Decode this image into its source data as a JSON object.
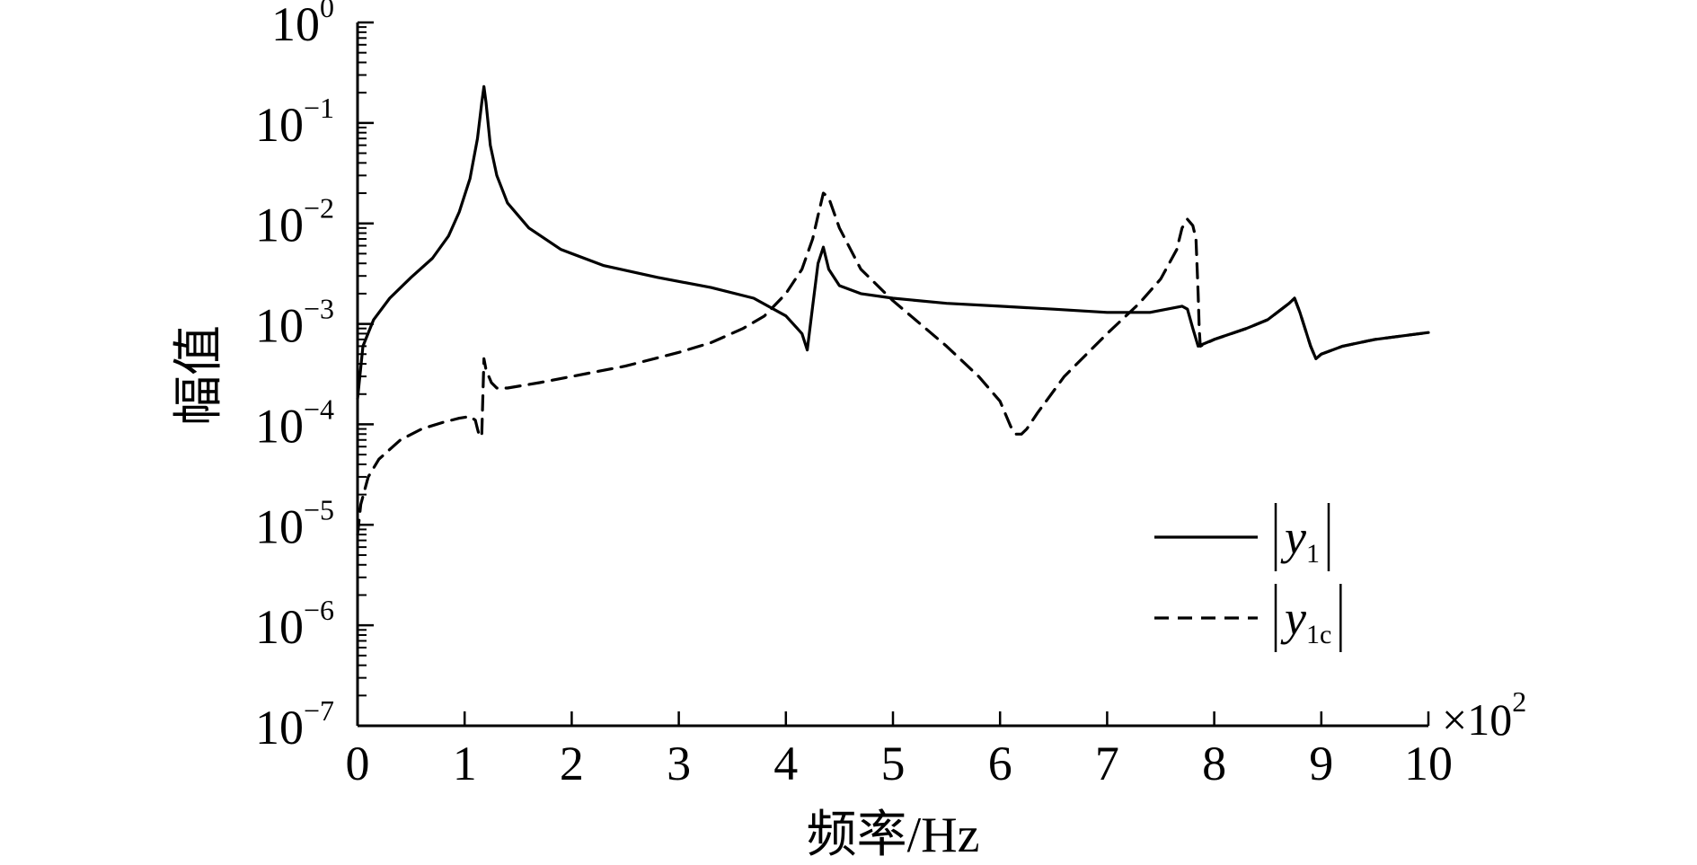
{
  "chart_data": {
    "type": "line",
    "xlabel": "频率/Hz",
    "ylabel": "幅值",
    "x_scale_label": "×10",
    "x_scale_exp": "2",
    "xlim": [
      0,
      10
    ],
    "ylim": [
      1e-07,
      1
    ],
    "yscale": "log",
    "x_ticks": [
      "0",
      "1",
      "2",
      "3",
      "4",
      "5",
      "6",
      "7",
      "8",
      "9",
      "10"
    ],
    "y_ticks": [
      {
        "base": "10",
        "exp": "0"
      },
      {
        "base": "10",
        "exp": "−1"
      },
      {
        "base": "10",
        "exp": "−2"
      },
      {
        "base": "10",
        "exp": "−3"
      },
      {
        "base": "10",
        "exp": "−4"
      },
      {
        "base": "10",
        "exp": "−5"
      },
      {
        "base": "10",
        "exp": "−6"
      },
      {
        "base": "10",
        "exp": "−7"
      }
    ],
    "grid": false,
    "legend_position": "lower-right",
    "series": [
      {
        "name": "|y1|",
        "label_main": "y",
        "label_sub": "1",
        "style": "solid",
        "color": "#000000",
        "x": [
          0,
          0.05,
          0.15,
          0.3,
          0.5,
          0.7,
          0.85,
          0.95,
          1.05,
          1.12,
          1.16,
          1.18,
          1.2,
          1.24,
          1.3,
          1.4,
          1.6,
          1.9,
          2.3,
          2.8,
          3.3,
          3.7,
          4.0,
          4.15,
          4.2,
          4.25,
          4.3,
          4.35,
          4.4,
          4.5,
          4.7,
          5.0,
          5.5,
          6.0,
          6.5,
          7.0,
          7.4,
          7.7,
          7.75,
          7.8,
          7.85,
          8.0,
          8.3,
          8.5,
          8.7,
          8.75,
          8.8,
          8.9,
          8.95,
          9.0,
          9.2,
          9.5,
          10.0
        ],
        "y": [
          0.00018,
          0.0006,
          0.0011,
          0.0018,
          0.0029,
          0.0045,
          0.0075,
          0.013,
          0.028,
          0.07,
          0.16,
          0.23,
          0.16,
          0.06,
          0.03,
          0.016,
          0.009,
          0.0055,
          0.0038,
          0.0029,
          0.0023,
          0.0018,
          0.0012,
          0.0008,
          0.00055,
          0.0015,
          0.004,
          0.0058,
          0.0035,
          0.0024,
          0.002,
          0.0018,
          0.0016,
          0.0015,
          0.0014,
          0.0013,
          0.0013,
          0.0015,
          0.0014,
          0.0009,
          0.0006,
          0.0007,
          0.0009,
          0.0011,
          0.0016,
          0.0018,
          0.0013,
          0.0006,
          0.00045,
          0.0005,
          0.0006,
          0.0007,
          0.00082
        ]
      },
      {
        "name": "|y1c|",
        "label_main": "y",
        "label_sub": "1c",
        "style": "dashed",
        "color": "#000000",
        "x": [
          0,
          0.03,
          0.1,
          0.2,
          0.4,
          0.6,
          0.8,
          0.95,
          1.05,
          1.1,
          1.12,
          1.14,
          1.16,
          1.18,
          1.2,
          1.25,
          1.3,
          1.4,
          1.7,
          2.0,
          2.5,
          3.0,
          3.3,
          3.6,
          3.8,
          4.0,
          4.15,
          4.25,
          4.3,
          4.35,
          4.4,
          4.5,
          4.7,
          5.0,
          5.5,
          5.8,
          6.0,
          6.1,
          6.15,
          6.2,
          6.25,
          6.35,
          6.6,
          7.0,
          7.3,
          7.5,
          7.65,
          7.7,
          7.75,
          7.8,
          7.83,
          7.85,
          7.86,
          7.87,
          8.0,
          8.3,
          8.5,
          8.7,
          8.75,
          8.8,
          8.9,
          8.95,
          9.0,
          9.2,
          9.5,
          10.0
        ],
        "y": [
          8e-06,
          1.6e-05,
          3e-05,
          4.5e-05,
          7e-05,
          9e-05,
          0.000105,
          0.000115,
          0.00012,
          0.00011,
          9e-05,
          7.5e-05,
          8e-05,
          0.00045,
          0.00035,
          0.00026,
          0.00023,
          0.00023,
          0.00026,
          0.0003,
          0.00038,
          0.00052,
          0.00065,
          0.0009,
          0.0012,
          0.002,
          0.0035,
          0.007,
          0.012,
          0.02,
          0.018,
          0.009,
          0.0035,
          0.0017,
          0.0006,
          0.0003,
          0.00017,
          9.5e-05,
          8e-05,
          8e-05,
          9e-05,
          0.00013,
          0.0003,
          0.0008,
          0.0016,
          0.0028,
          0.0055,
          0.009,
          0.011,
          0.0095,
          0.007,
          0.002,
          0.0009,
          0.0006,
          0.0007,
          0.0009,
          0.0011,
          0.0016,
          0.0018,
          0.0013,
          0.0006,
          0.00045,
          0.0005,
          0.0006,
          0.0007,
          0.00082
        ]
      }
    ]
  }
}
